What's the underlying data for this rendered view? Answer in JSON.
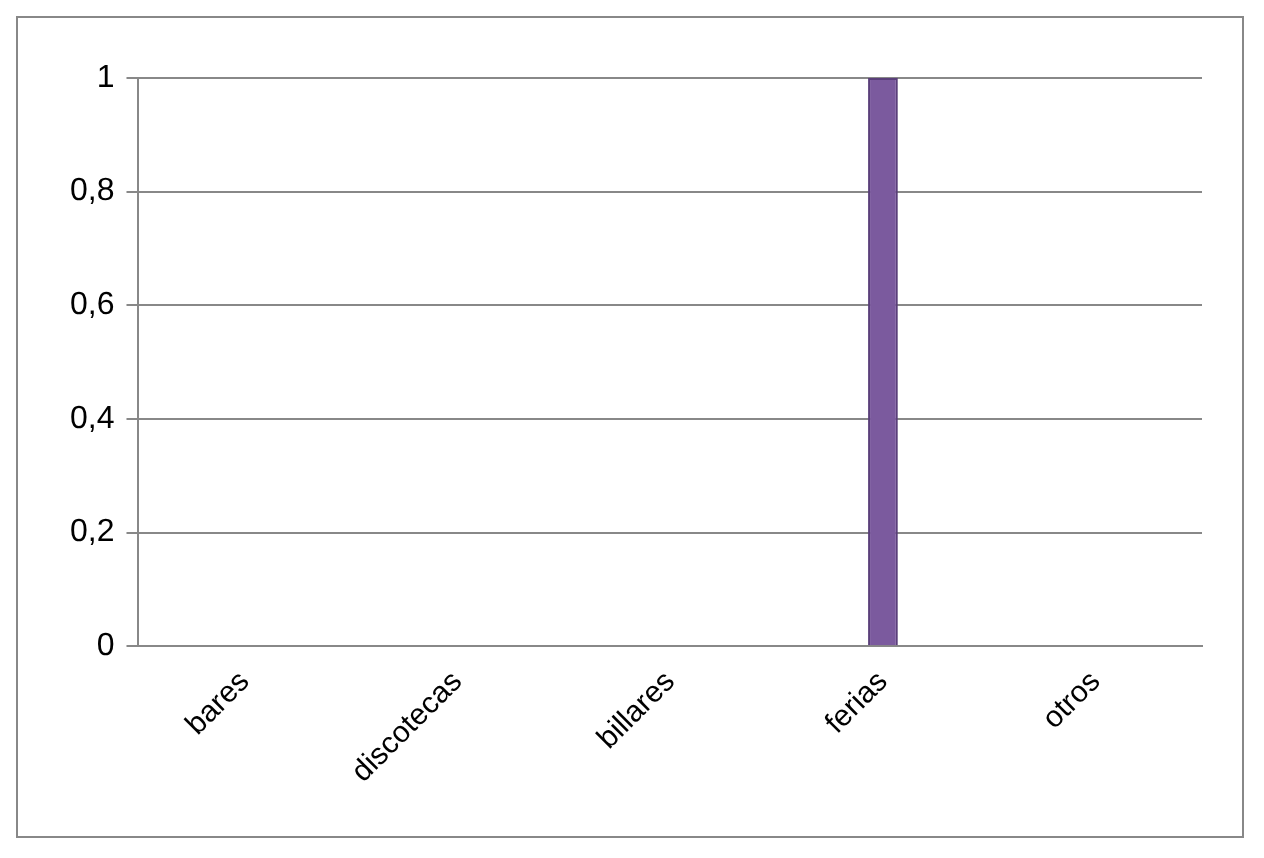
{
  "chart_data": {
    "type": "bar",
    "categories": [
      "bares",
      "discotecas",
      "billares",
      "ferias",
      "otros"
    ],
    "values": [
      0,
      0,
      0,
      1,
      0
    ],
    "color": "#7b5a9e",
    "ylim": [
      0,
      1
    ],
    "yticks": [
      0,
      {
        "value": 0.2,
        "label": "0,2"
      },
      {
        "value": 0.4,
        "label": "0,4"
      },
      {
        "value": 0.6,
        "label": "0,6"
      },
      {
        "value": 0.8,
        "label": "0,8"
      },
      1
    ],
    "grid": "y",
    "legend": false
  }
}
